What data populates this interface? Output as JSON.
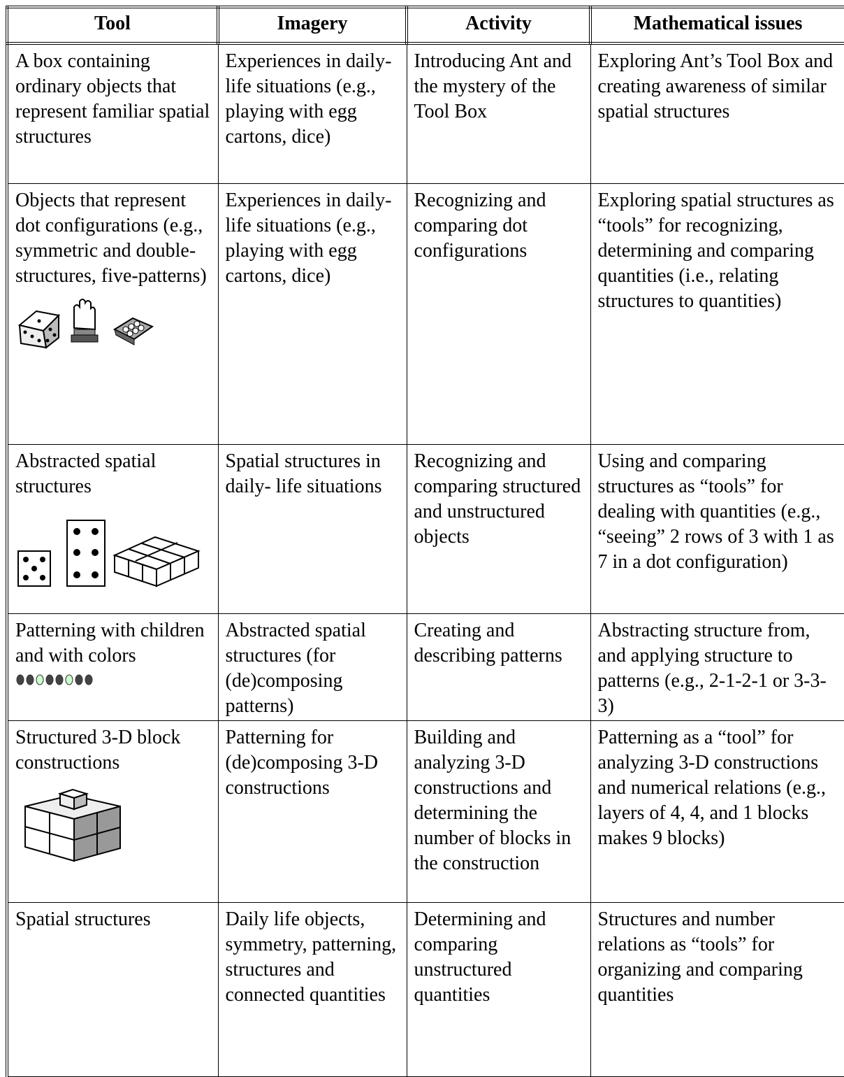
{
  "table": {
    "header": [
      "Tool",
      "Imagery",
      "Activity",
      "Mathematical issues"
    ],
    "rows": [
      [
        "A box containing ordinary objects that represent familiar spatial structures",
        "Experiences in daily-life situations (e.g., playing with egg cartons, dice)",
        "Introducing Ant and the mystery of the Tool Box",
        "Exploring Ant’s Tool Box and creating awareness of similar spatial structures"
      ],
      [
        "Objects that represent dot configurations (e.g., symmetric and double-structures, five-patterns)",
        "Experiences in daily-life situations (e.g., playing with egg cartons, dice)",
        "Recognizing and comparing dot configurations",
        "Exploring spatial structures as “tools” for recognizing, determining and comparing quantities (i.e., relating structures to quantities)"
      ],
      [
        "Abstracted spatial structures",
        "Spatial structures in daily- life situations",
        "Recognizing and comparing structured and unstructured objects",
        "Using and comparing structures as “tools” for dealing with quantities (e.g., “seeing” 2 rows of 3 with 1 as 7 in a dot configuration)"
      ],
      [
        "Patterning with children and with colors",
        "Abstracted spatial structures (for (de)composing patterns)",
        "Creating and describing patterns",
        "Abstracting structure from, and applying structure to patterns (e.g., 2-1-2-1 or 3-3-3)"
      ],
      [
        "Structured 3-D block constructions",
        "Patterning for (de)composing 3-D constructions",
        "Building and analyzing 3-D constructions and determining the number of blocks in the construction",
        "Patterning as a “tool” for analyzing 3-D constructions and numerical relations (e.g., layers of 4, 4, and 1 blocks makes 9 blocks)"
      ],
      [
        "Spatial structures",
        "Daily life objects, symmetry, patterning, structures and connected quantities",
        "Determining and comparing unstructured quantities",
        "Structures and number relations as “tools” for organizing and comparing quantities"
      ]
    ]
  }
}
